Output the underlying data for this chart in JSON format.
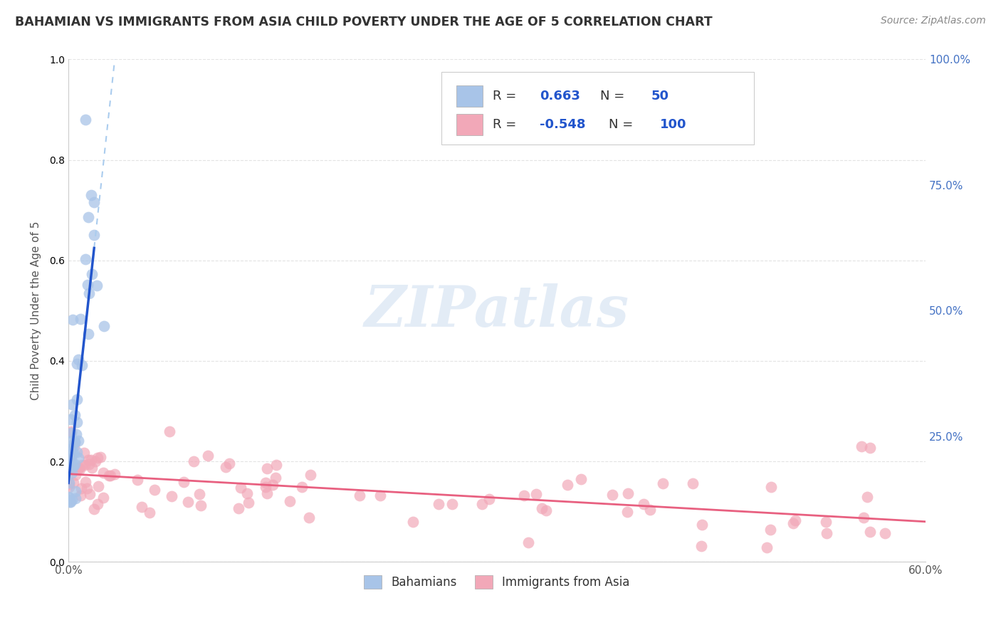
{
  "title": "BAHAMIAN VS IMMIGRANTS FROM ASIA CHILD POVERTY UNDER THE AGE OF 5 CORRELATION CHART",
  "source": "Source: ZipAtlas.com",
  "ylabel": "Child Poverty Under the Age of 5",
  "blue_R": 0.663,
  "blue_N": 50,
  "pink_R": -0.548,
  "pink_N": 100,
  "blue_color": "#a8c4e8",
  "pink_color": "#f2a8b8",
  "blue_line_color": "#2255cc",
  "pink_line_color": "#e86080",
  "dash_line_color": "#aaccee",
  "legend1": "Bahamians",
  "legend2": "Immigrants from Asia",
  "xlim": [
    0.0,
    0.6
  ],
  "ylim": [
    0.0,
    1.0
  ],
  "xticks": [
    0.0,
    0.1,
    0.2,
    0.3,
    0.4,
    0.5,
    0.6
  ],
  "xticklabels": [
    "0.0%",
    "",
    "",
    "",
    "",
    "",
    "60.0%"
  ],
  "yticks": [
    0.0,
    0.25,
    0.5,
    0.75,
    1.0
  ],
  "yticklabels_right": [
    "",
    "25.0%",
    "50.0%",
    "75.0%",
    "100.0%"
  ],
  "watermark_text": "ZIPatlas",
  "background_color": "#ffffff",
  "grid_color": "#dddddd",
  "title_color": "#333333",
  "source_color": "#888888",
  "tick_color": "#4472c4",
  "ylabel_color": "#555555"
}
